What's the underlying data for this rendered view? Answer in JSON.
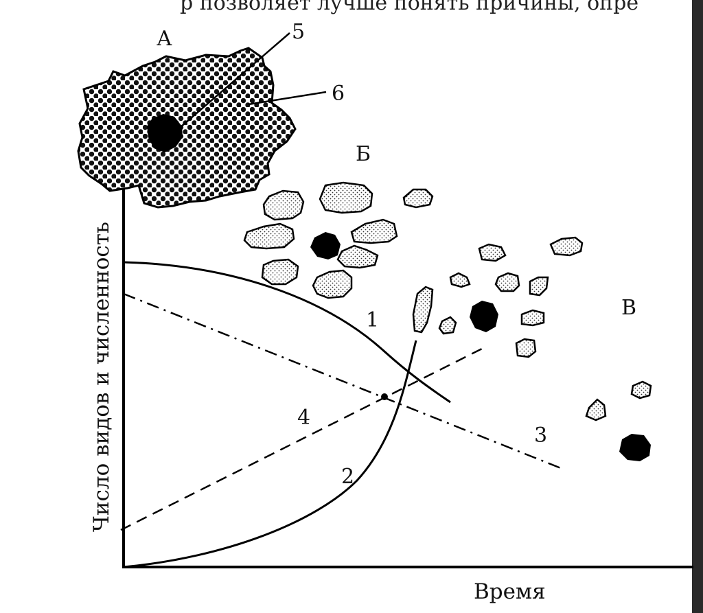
{
  "header_fragment": "р  позволяет лучше понять причины, опре",
  "axes": {
    "x_label": "Время",
    "y_label": "Число видов и численность"
  },
  "stage_labels": {
    "a": "А",
    "b": "Б",
    "c": "В"
  },
  "curve_labels": {
    "c1": "1",
    "c2": "2",
    "c3": "3",
    "c4": "4"
  },
  "callouts": {
    "c5": "5",
    "c6": "6"
  }
}
